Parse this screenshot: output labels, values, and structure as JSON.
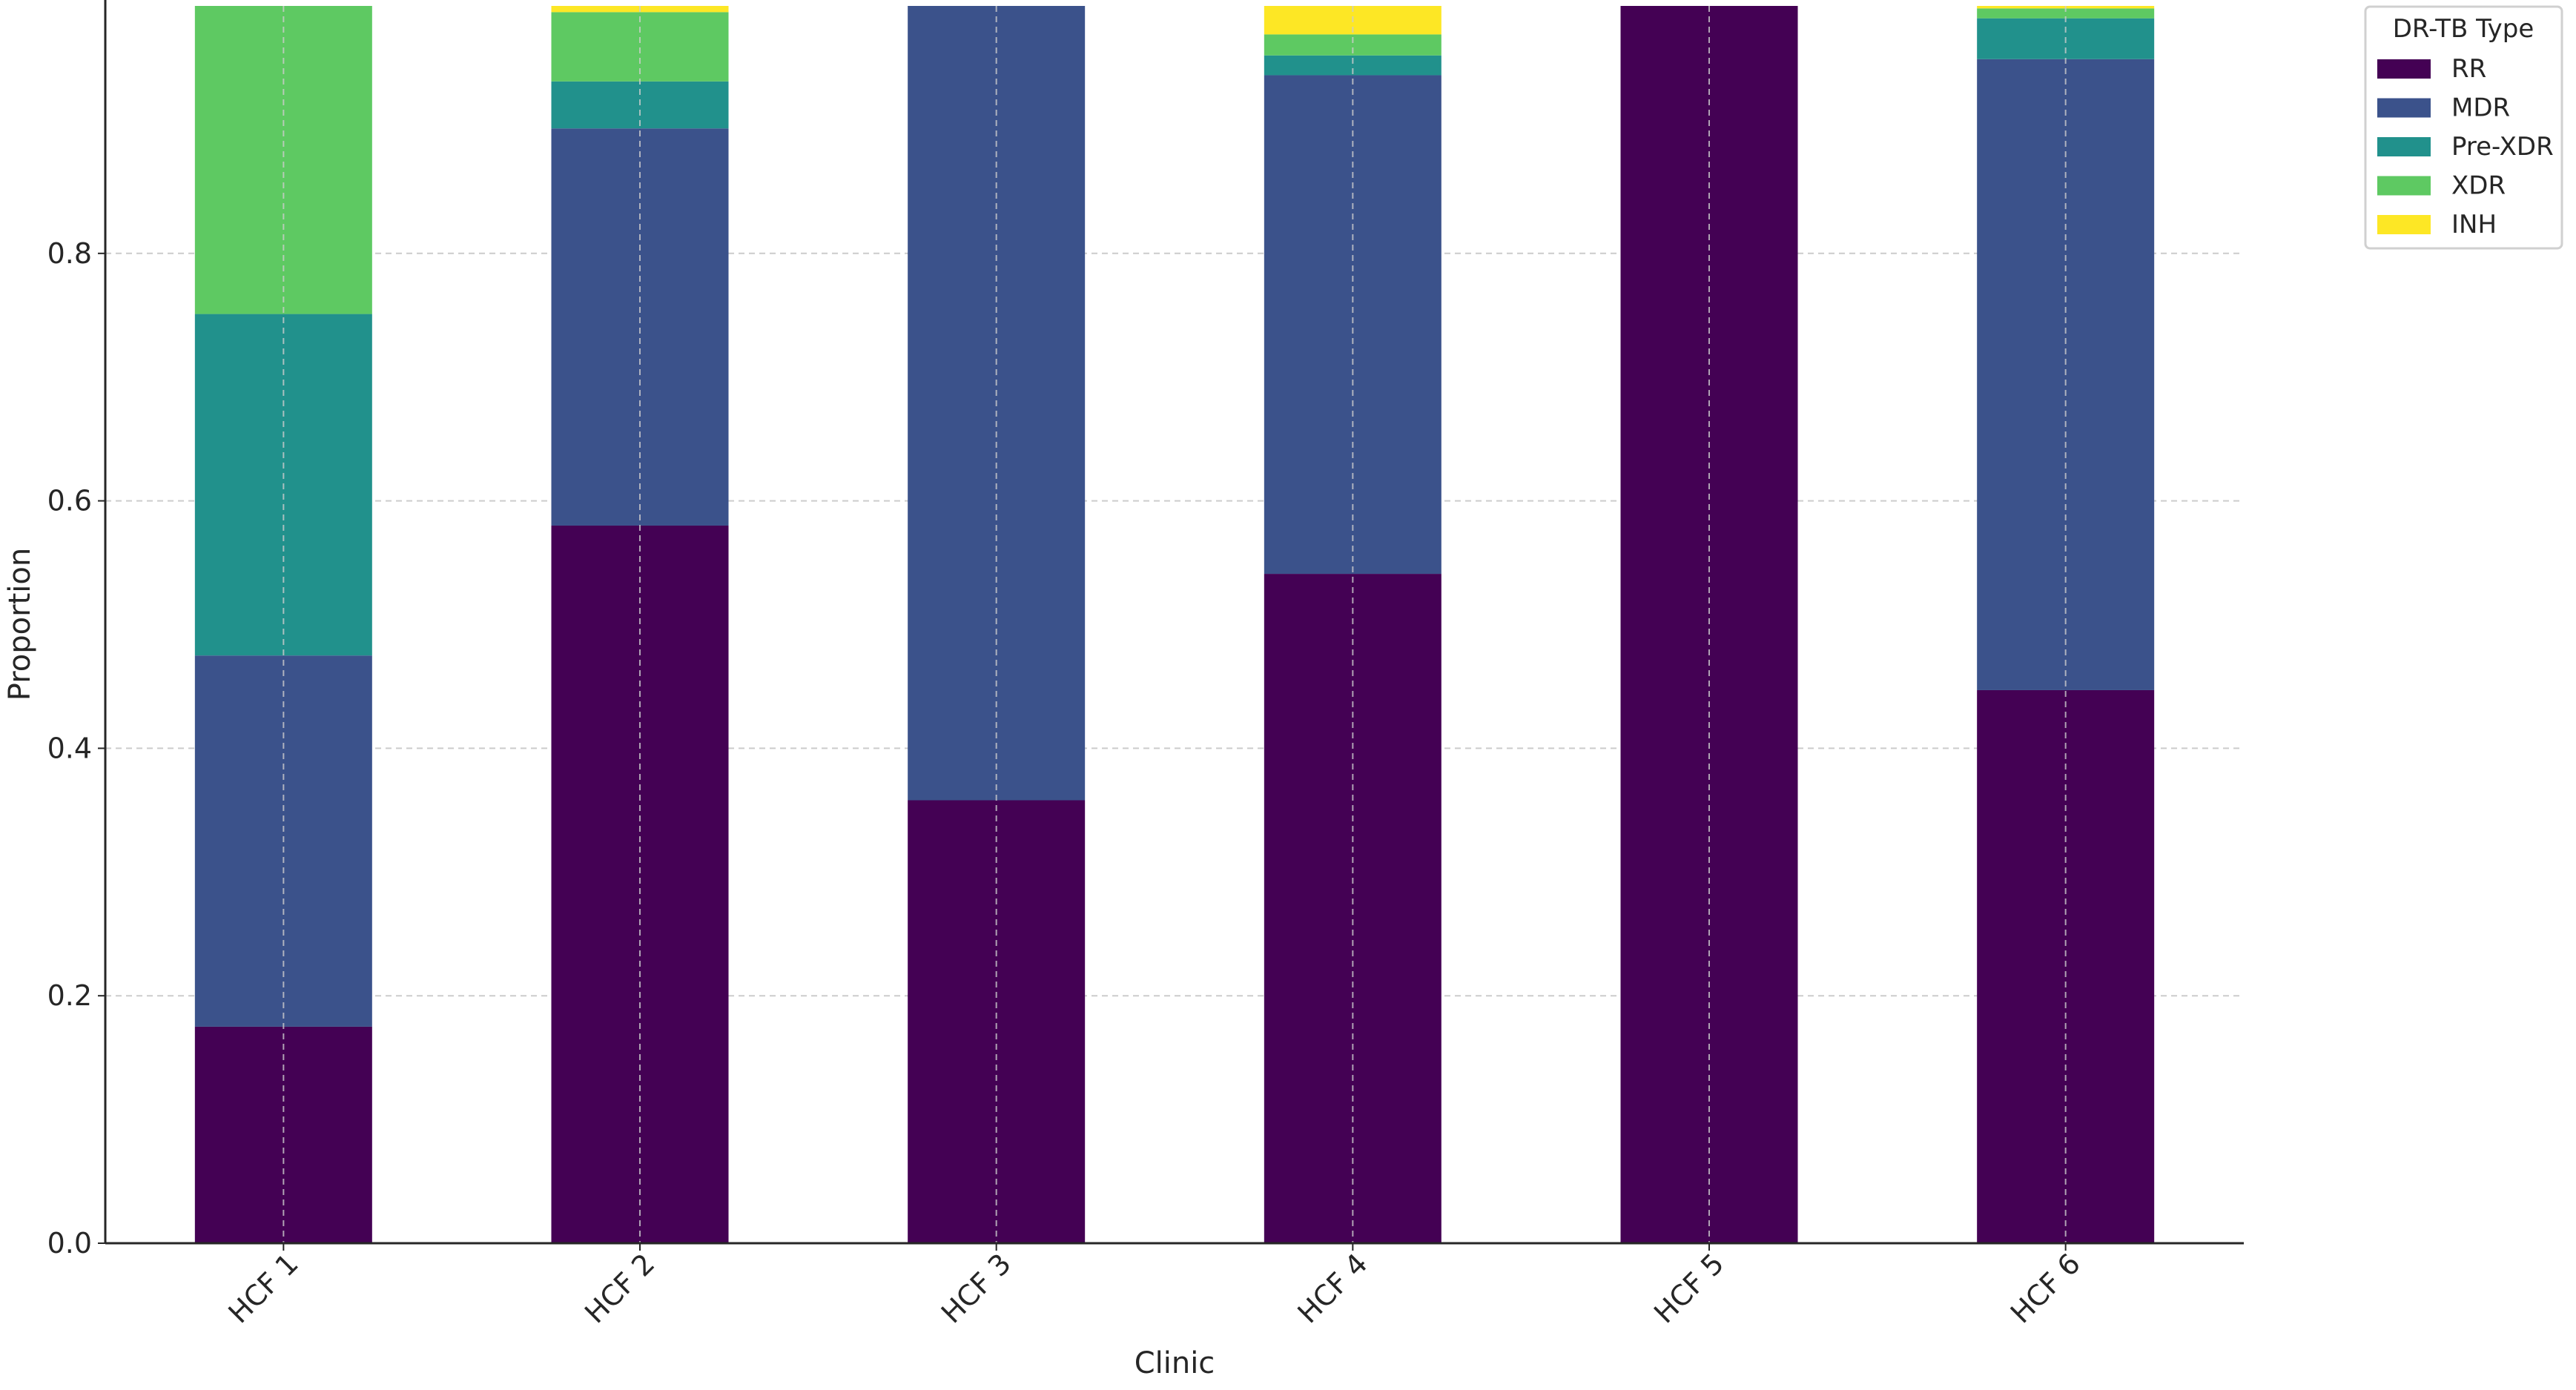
{
  "chart_data": {
    "type": "bar",
    "stacked": true,
    "title": "",
    "xlabel": "Clinic",
    "ylabel": "Proportion",
    "ylim": [
      0,
      1.0
    ],
    "yticks": [
      "0.0",
      "0.2",
      "0.4",
      "0.6",
      "0.8"
    ],
    "ytick_values": [
      0,
      0.2,
      0.4,
      0.6,
      0.8
    ],
    "grid": true,
    "categories": [
      "HCF 1",
      "HCF 2",
      "HCF 3",
      "HCF 4",
      "HCF 5",
      "HCF 6"
    ],
    "legend": {
      "title": "DR-TB Type",
      "placement": "outside-top-right"
    },
    "series": [
      {
        "name": "RR",
        "color": "#440154",
        "values": [
          0.175,
          0.58,
          0.358,
          0.541,
          1.0,
          0.447
        ]
      },
      {
        "name": "MDR",
        "color": "#3b528b",
        "values": [
          0.3,
          0.321,
          0.642,
          0.403,
          0.0,
          0.51
        ]
      },
      {
        "name": "Pre-XDR",
        "color": "#21918c",
        "values": [
          0.276,
          0.038,
          0.0,
          0.016,
          0.0,
          0.033
        ]
      },
      {
        "name": "XDR",
        "color": "#5ec962",
        "values": [
          0.249,
          0.056,
          0.0,
          0.017,
          0.0,
          0.008
        ]
      },
      {
        "name": "INH",
        "color": "#fde725",
        "values": [
          0.0,
          0.005,
          0.0,
          0.023,
          0.0,
          0.002
        ]
      }
    ]
  }
}
